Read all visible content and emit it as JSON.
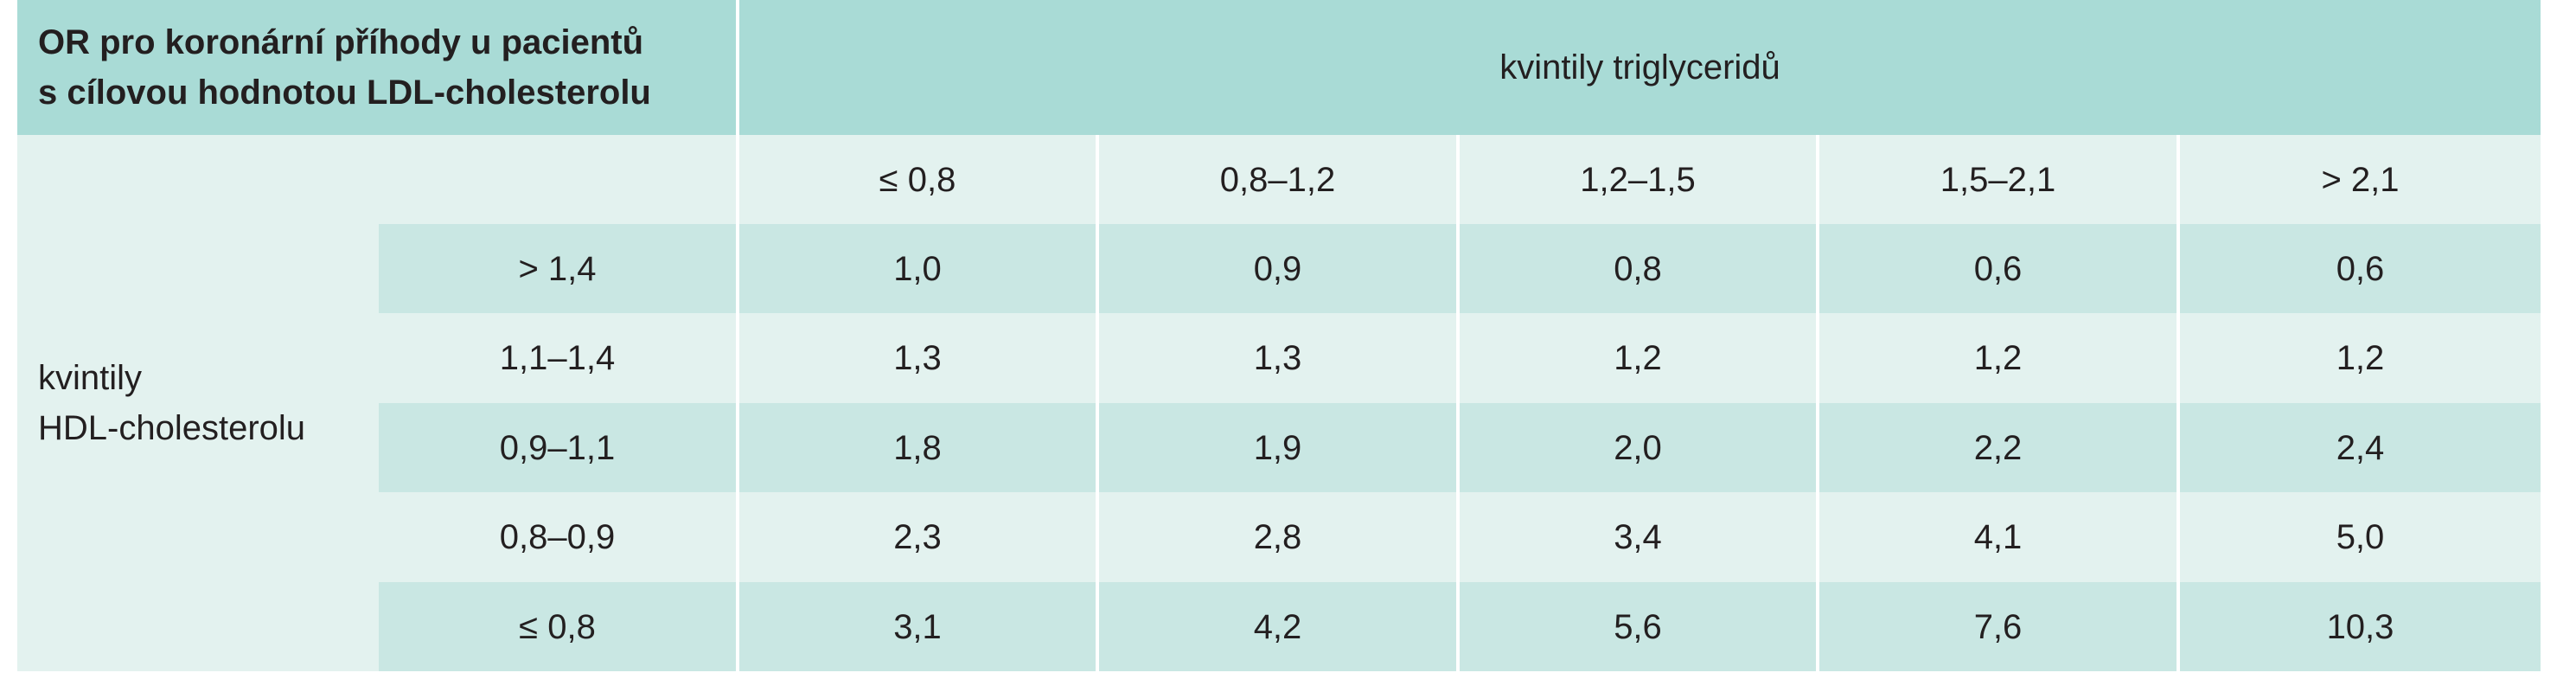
{
  "table": {
    "corner_title_lines": [
      "OR pro koronární příhody u pacientů",
      "s cílovou hodnotou LDL-cholesterolu"
    ],
    "column_group_header": "kvintily triglyceridů",
    "column_headers": [
      "≤ 0,8",
      "0,8–1,2",
      "1,2–1,5",
      "1,5–2,1",
      "> 2,1"
    ],
    "row_group_label_lines": [
      "kvintily",
      "HDL-cholesterolu"
    ],
    "rows": [
      {
        "label": "> 1,4",
        "values": [
          "1,0",
          "0,9",
          "0,8",
          "0,6",
          "0,6"
        ]
      },
      {
        "label": "1,1–1,4",
        "values": [
          "1,3",
          "1,3",
          "1,2",
          "1,2",
          "1,2"
        ]
      },
      {
        "label": "0,9–1,1",
        "values": [
          "1,8",
          "1,9",
          "2,0",
          "2,2",
          "2,4"
        ]
      },
      {
        "label": "0,8–0,9",
        "values": [
          "2,3",
          "2,8",
          "3,4",
          "4,1",
          "5,0"
        ]
      },
      {
        "label": "≤ 0,8",
        "values": [
          "3,1",
          "4,2",
          "5,6",
          "7,6",
          "10,3"
        ]
      }
    ]
  },
  "colors": {
    "header": "#a9dbd6",
    "light_row": "#e3f2ef",
    "dark_row": "#c9e7e3",
    "text": "#231f20"
  }
}
